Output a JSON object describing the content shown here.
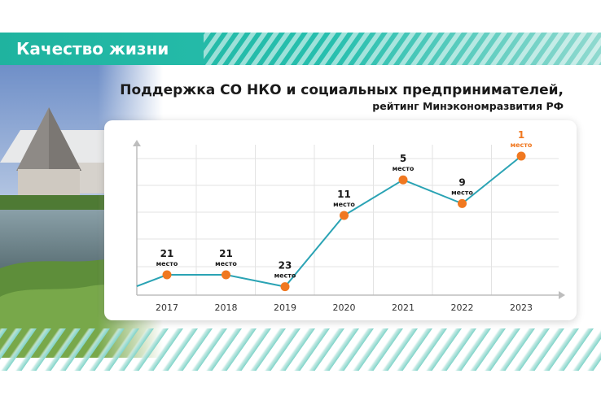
{
  "header": {
    "title": "Качество жизни"
  },
  "chart_data": {
    "type": "line",
    "title": "Поддержка СО НКО и социальных предпринимателей,",
    "subtitle": "рейтинг Минэкономразвития РФ",
    "x": [
      "2017",
      "2018",
      "2019",
      "2020",
      "2021",
      "2022",
      "2023"
    ],
    "values": [
      21,
      21,
      23,
      11,
      5,
      9,
      1
    ],
    "point_labels": [
      "21",
      "21",
      "23",
      "11",
      "5",
      "9",
      "1"
    ],
    "unit_label": "место",
    "y_inverted": true,
    "ylim": [
      25,
      0
    ],
    "grid": true,
    "highlight_index": 6,
    "colors": {
      "line": "#2aa3b4",
      "marker": "#f07820",
      "highlight_text": "#f07820",
      "text": "#1a1a1a"
    }
  },
  "colors": {
    "teal": "#27b7a7",
    "teal_light": "#bfe8e2"
  }
}
